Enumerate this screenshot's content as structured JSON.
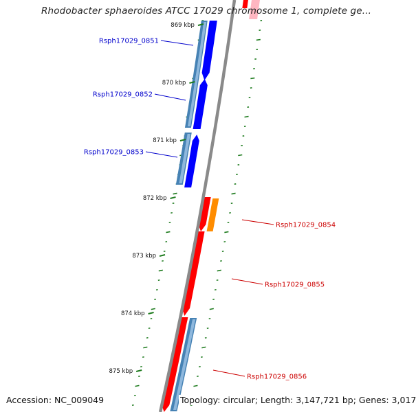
{
  "title": "Rhodobacter sphaeroides ATCC 17029 chromosome 1, complete ge...",
  "footer": {
    "accession": "Accession: NC_009049",
    "topology": "Topology: circular; Length: 3,147,721 bp; Genes: 3,017"
  },
  "colors": {
    "backbone": "#8a8a8a",
    "forward_cds": "#0000ff",
    "forward_gene": "#4682b4",
    "reverse_cds": "#ff0000",
    "reverse_gene": "#4682b4",
    "rna": "#ff8c00",
    "pink_feature": "#ffb6c1",
    "gc_ticks": "#1e7b1e",
    "forward_label": "#0000cc",
    "reverse_label": "#cc0000"
  },
  "scale_labels": [
    "869 kbp",
    "870 kbp",
    "871 kbp",
    "872 kbp",
    "873 kbp",
    "874 kbp",
    "875 kbp"
  ],
  "genes": [
    {
      "name": "Rsph17029_0851",
      "strand": "forward"
    },
    {
      "name": "Rsph17029_0852",
      "strand": "forward"
    },
    {
      "name": "Rsph17029_0853",
      "strand": "forward"
    },
    {
      "name": "Rsph17029_0854",
      "strand": "reverse"
    },
    {
      "name": "Rsph17029_0855",
      "strand": "reverse"
    },
    {
      "name": "Rsph17029_0856",
      "strand": "reverse"
    }
  ]
}
